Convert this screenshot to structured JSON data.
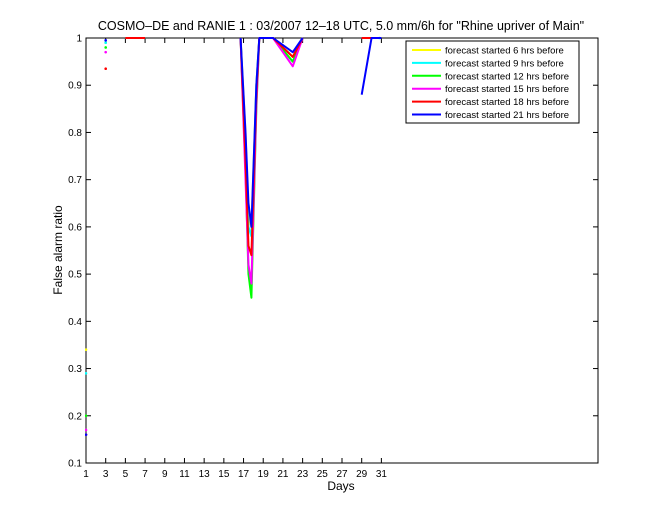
{
  "chart_data": {
    "type": "line",
    "title": "COSMO–DE and RANIE 1 : 03/2007 12–18 UTC, 5.0 mm/6h for \"Rhine upriver of Main\"",
    "xlabel": "Days",
    "ylabel": "False alarm ratio",
    "xlim": [
      1,
      53
    ],
    "ylim": [
      0.1,
      1
    ],
    "xticks": [
      1,
      3,
      5,
      7,
      9,
      11,
      13,
      15,
      17,
      19,
      21,
      23,
      25,
      27,
      29,
      31
    ],
    "yticks": [
      0.1,
      0.2,
      0.3,
      0.4,
      0.5,
      0.6,
      0.7,
      0.8,
      0.9,
      1
    ],
    "grid": false,
    "legend_position": "top-right",
    "series": [
      {
        "name": "forecast started 6 hrs before",
        "color": "#ffff00",
        "points": [
          [
            1,
            0.34
          ],
          null,
          [
            3,
            0.99
          ],
          null,
          [
            5,
            1
          ],
          [
            7,
            1
          ],
          null,
          [
            16.7,
            1
          ],
          [
            17.2,
            0.8
          ],
          [
            17.5,
            0.62
          ],
          [
            17.8,
            0.6
          ],
          [
            18.3,
            0.9
          ],
          [
            18.6,
            1
          ],
          [
            20,
            1
          ],
          [
            22,
            0.96
          ],
          [
            23,
            1
          ],
          null,
          [
            29,
            1
          ],
          [
            30,
            1
          ]
        ]
      },
      {
        "name": "forecast started 9 hrs before",
        "color": "#00ffff",
        "points": [
          [
            1,
            0.29
          ],
          null,
          [
            3,
            0.99
          ],
          null,
          [
            5,
            1
          ],
          [
            7,
            1
          ],
          null,
          [
            16.7,
            1
          ],
          [
            17.2,
            0.78
          ],
          [
            17.5,
            0.6
          ],
          [
            17.8,
            0.58
          ],
          [
            18.3,
            0.9
          ],
          [
            18.6,
            1
          ],
          [
            20,
            1
          ],
          [
            22,
            0.95
          ],
          [
            23,
            1
          ],
          null,
          [
            29,
            1
          ],
          [
            30,
            1
          ],
          null,
          [
            30.8,
            1
          ]
        ]
      },
      {
        "name": "forecast started 12 hrs before",
        "color": "#00ff00",
        "points": [
          [
            1,
            0.2
          ],
          null,
          [
            3,
            0.98
          ],
          null,
          [
            5,
            1
          ],
          [
            7,
            1
          ],
          null,
          [
            16.7,
            1
          ],
          [
            17.2,
            0.72
          ],
          [
            17.5,
            0.5
          ],
          [
            17.8,
            0.45
          ],
          [
            18.3,
            0.85
          ],
          [
            18.6,
            1
          ],
          [
            20,
            1
          ],
          [
            22,
            0.95
          ],
          [
            23,
            1
          ],
          null,
          [
            29,
            1
          ],
          [
            30,
            1
          ]
        ]
      },
      {
        "name": "forecast started 15 hrs before",
        "color": "#ff00ff",
        "points": [
          [
            1,
            0.17
          ],
          null,
          [
            3,
            0.97
          ],
          null,
          [
            5,
            1
          ],
          [
            7,
            1
          ],
          null,
          [
            16.7,
            1
          ],
          [
            17.2,
            0.7
          ],
          [
            17.5,
            0.52
          ],
          [
            17.8,
            0.48
          ],
          [
            18.3,
            0.86
          ],
          [
            18.6,
            1
          ],
          [
            20,
            1
          ],
          [
            22,
            0.94
          ],
          [
            23,
            1
          ],
          null,
          [
            29,
            1
          ],
          [
            30,
            1
          ]
        ]
      },
      {
        "name": "forecast started 18 hrs before",
        "color": "#ff0000",
        "points": [
          [
            1,
            0.16
          ],
          null,
          [
            3,
            0.935
          ],
          null,
          [
            5,
            1
          ],
          [
            7,
            1
          ],
          null,
          [
            16.7,
            1
          ],
          [
            17.2,
            0.74
          ],
          [
            17.5,
            0.56
          ],
          [
            17.8,
            0.54
          ],
          [
            18.3,
            0.88
          ],
          [
            18.6,
            1
          ],
          [
            20,
            1
          ],
          [
            22,
            0.96
          ],
          [
            23,
            1
          ],
          null,
          [
            29,
            1
          ],
          [
            30,
            1
          ]
        ]
      },
      {
        "name": "forecast started 21 hrs before",
        "color": "#0000ff",
        "points": [
          [
            1,
            0.16
          ],
          null,
          [
            3,
            0.995
          ],
          null,
          [
            16.7,
            1
          ],
          [
            17.2,
            0.8
          ],
          [
            17.5,
            0.65
          ],
          [
            17.8,
            0.6
          ],
          [
            18.3,
            0.9
          ],
          [
            18.6,
            1
          ],
          [
            20,
            1
          ],
          [
            22,
            0.97
          ],
          [
            23,
            1
          ],
          null,
          [
            29,
            0.88
          ],
          [
            30,
            1
          ],
          [
            31,
            1
          ]
        ]
      }
    ]
  }
}
